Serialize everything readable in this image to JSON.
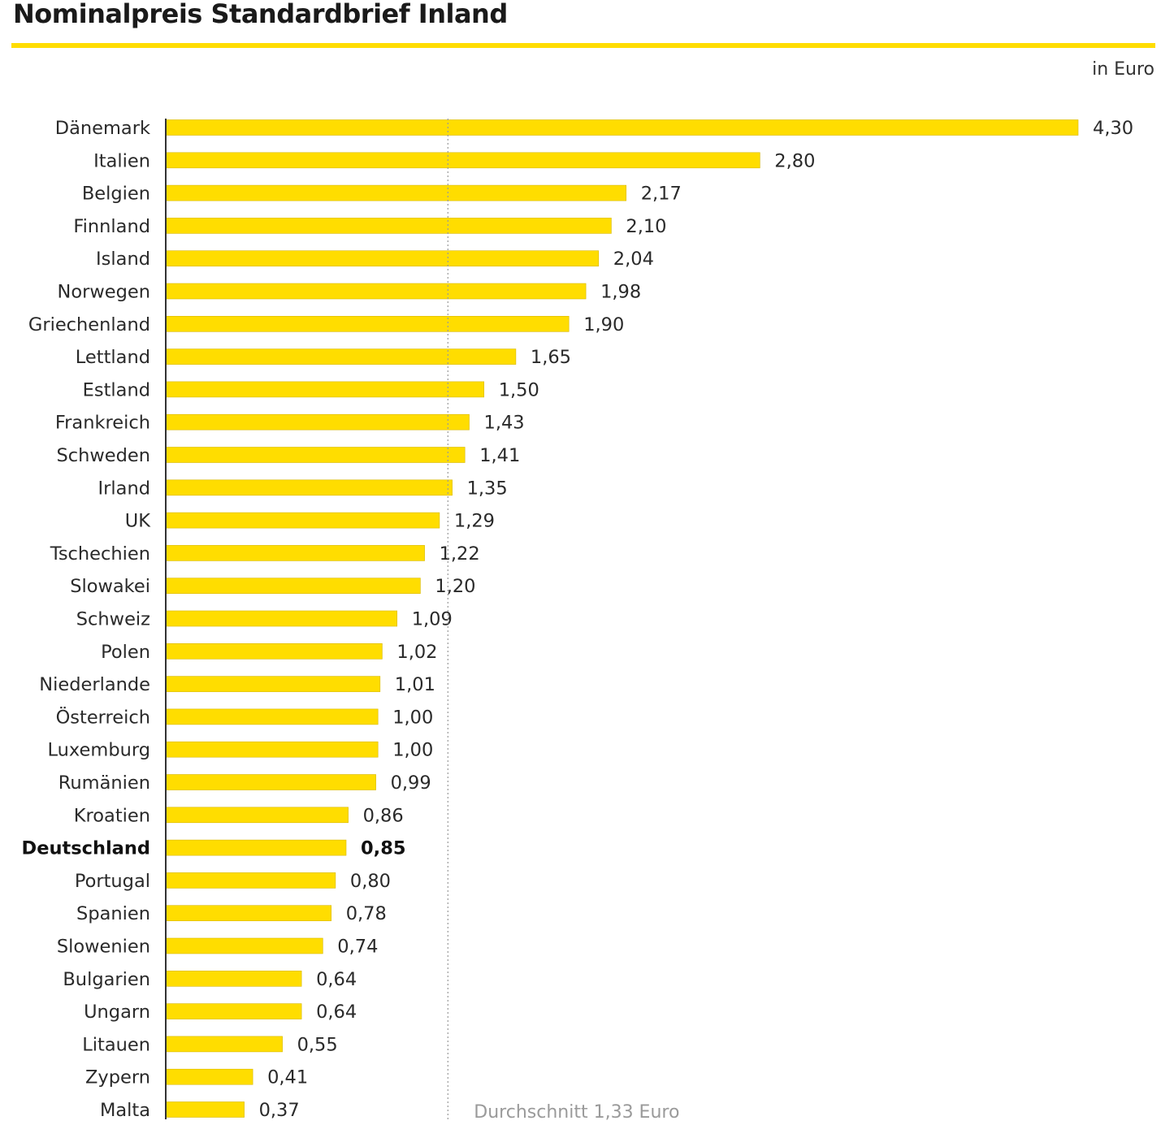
{
  "chart_data": {
    "type": "bar",
    "orientation": "horizontal",
    "title": "Nominalpreis Standardbrief Inland",
    "unit_label": "in Euro",
    "categories": [
      "Dänemark",
      "Italien",
      "Belgien",
      "Finnland",
      "Island",
      "Norwegen",
      "Griechenland",
      "Lettland",
      "Estland",
      "Frankreich",
      "Schweden",
      "Irland",
      "UK",
      "Tschechien",
      "Slowakei",
      "Schweiz",
      "Polen",
      "Niederlande",
      "Österreich",
      "Luxemburg",
      "Rumänien",
      "Kroatien",
      "Deutschland",
      "Portugal",
      "Spanien",
      "Slowenien",
      "Bulgarien",
      "Ungarn",
      "Litauen",
      "Zypern",
      "Malta"
    ],
    "values": [
      4.3,
      2.8,
      2.17,
      2.1,
      2.04,
      1.98,
      1.9,
      1.65,
      1.5,
      1.43,
      1.41,
      1.35,
      1.29,
      1.22,
      1.2,
      1.09,
      1.02,
      1.01,
      1.0,
      1.0,
      0.99,
      0.86,
      0.85,
      0.8,
      0.78,
      0.74,
      0.64,
      0.64,
      0.55,
      0.41,
      0.37
    ],
    "value_labels": [
      "4,30",
      "2,80",
      "2,17",
      "2,10",
      "2,04",
      "1,98",
      "1,90",
      "1,65",
      "1,50",
      "1,43",
      "1,41",
      "1,35",
      "1,29",
      "1,22",
      "1,20",
      "1,09",
      "1,02",
      "1,01",
      "1,00",
      "1,00",
      "0,99",
      "0,86",
      "0,85",
      "0,80",
      "0,78",
      "0,74",
      "0,64",
      "0,64",
      "0,55",
      "0,41",
      "0,37"
    ],
    "highlight": "Deutschland",
    "reference_line": {
      "value": 1.33,
      "label": "Durchschnitt 1,33 Euro"
    },
    "xlim": [
      0,
      4.3
    ],
    "bar_color": "#ffdd00",
    "grid": false
  }
}
